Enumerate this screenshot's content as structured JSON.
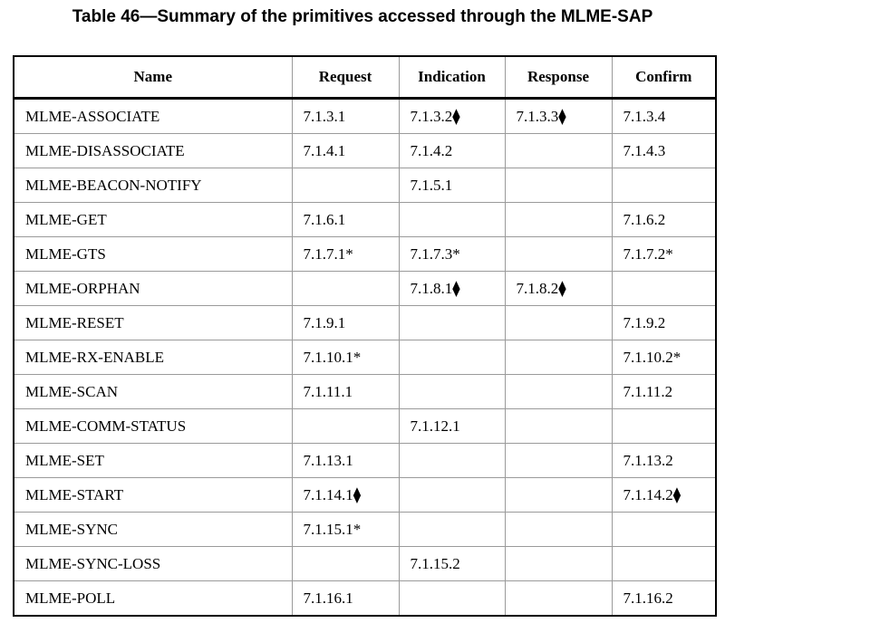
{
  "caption": "Table 46—Summary of the primitives accessed through the MLME-SAP",
  "table": {
    "headers": [
      "Name",
      "Request",
      "Indication",
      "Response",
      "Confirm"
    ],
    "rows": [
      [
        "MLME-ASSOCIATE",
        "7.1.3.1",
        "7.1.3.2⧫",
        "7.1.3.3⧫",
        "7.1.3.4"
      ],
      [
        "MLME-DISASSOCIATE",
        "7.1.4.1",
        "7.1.4.2",
        "",
        "7.1.4.3"
      ],
      [
        "MLME-BEACON-NOTIFY",
        "",
        "7.1.5.1",
        "",
        ""
      ],
      [
        "MLME-GET",
        "7.1.6.1",
        "",
        "",
        "7.1.6.2"
      ],
      [
        "MLME-GTS",
        "7.1.7.1*",
        "7.1.7.3*",
        "",
        "7.1.7.2*"
      ],
      [
        "MLME-ORPHAN",
        "",
        "7.1.8.1⧫",
        "7.1.8.2⧫",
        ""
      ],
      [
        "MLME-RESET",
        "7.1.9.1",
        "",
        "",
        "7.1.9.2"
      ],
      [
        "MLME-RX-ENABLE",
        "7.1.10.1*",
        "",
        "",
        "7.1.10.2*"
      ],
      [
        "MLME-SCAN",
        "7.1.11.1",
        "",
        "",
        "7.1.11.2"
      ],
      [
        "MLME-COMM-STATUS",
        "",
        "7.1.12.1",
        "",
        ""
      ],
      [
        "MLME-SET",
        "7.1.13.1",
        "",
        "",
        "7.1.13.2"
      ],
      [
        "MLME-START",
        "7.1.14.1⧫",
        "",
        "",
        "7.1.14.2⧫"
      ],
      [
        "MLME-SYNC",
        "7.1.15.1*",
        "",
        "",
        ""
      ],
      [
        "MLME-SYNC-LOSS",
        "",
        "7.1.15.2",
        "",
        ""
      ],
      [
        "MLME-POLL",
        "7.1.16.1",
        "",
        "",
        "7.1.16.2"
      ]
    ]
  }
}
